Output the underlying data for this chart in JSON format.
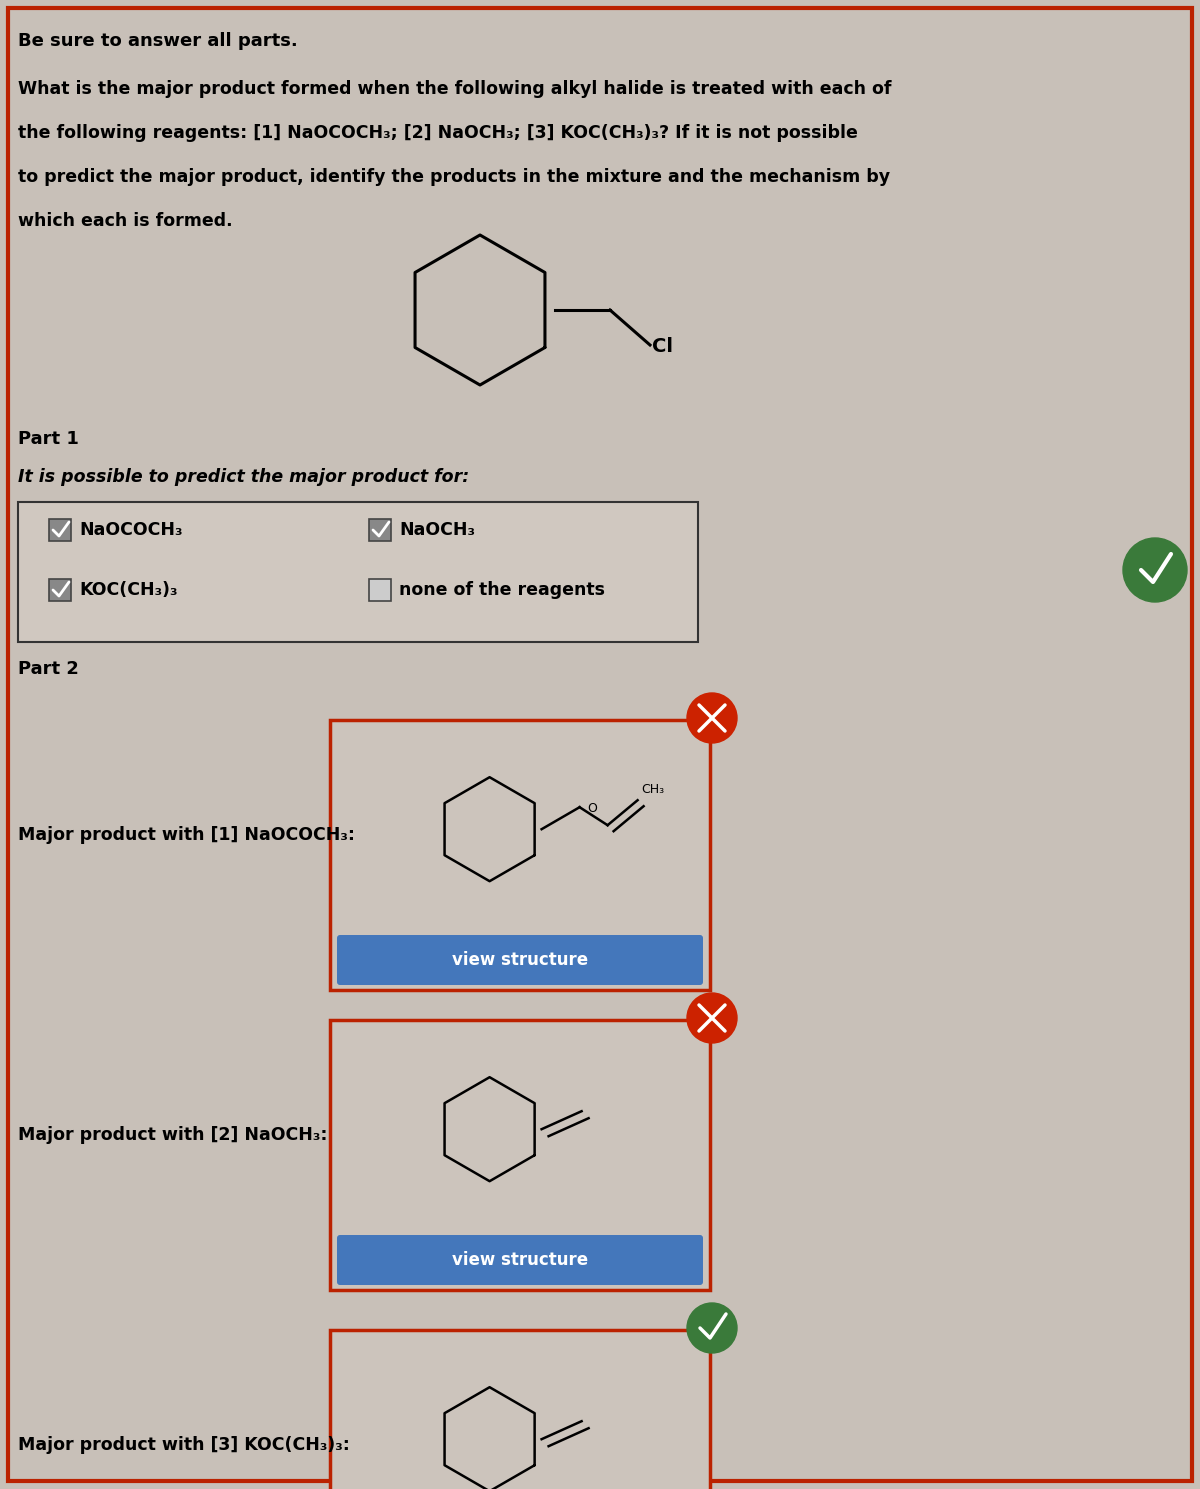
{
  "bg_color": "#c8c0b8",
  "border_color": "#bb2200",
  "title_bold": "Be sure to answer all parts.",
  "question_lines": [
    "What is the major product formed when the following alkyl halide is treated with each of",
    "the following reagents: [1] NaOCOCH₃; [2] NaOCH₃; [3] KOC(CH₃)₃? If it is not possible",
    "to predict the major product, identify the products in the mixture and the mechanism by",
    "which each is formed."
  ],
  "part1_header": "Part 1",
  "part1_subtext": "It is possible to predict the major product for:",
  "checkbox_items": [
    {
      "label": "NaOCOCH₃",
      "checked": true
    },
    {
      "label": "NaOCH₃",
      "checked": true
    },
    {
      "label": "KOC(CH₃)₃",
      "checked": true
    },
    {
      "label": "none of the reagents",
      "checked": false
    }
  ],
  "part2_header": "Part 2",
  "product_labels": [
    "Major product with [1] NaOCOCH₃:",
    "Major product with [2] NaOCH₃:",
    "Major product with [3] KOC(CH₃)₃:"
  ],
  "view_structure_color": "#4477bb",
  "view_structure_text": "view structure",
  "btn_text_color": "#ffffff",
  "color_correct": "#3a7a3a",
  "color_wrong": "#cc2200",
  "correct_index": 2,
  "box_bg": "#d4ccc4",
  "checkbox_bg_checked": "#888888",
  "checkbox_bg_unchecked": "#cccccc",
  "inner_box_bg": "#ccc4bc"
}
